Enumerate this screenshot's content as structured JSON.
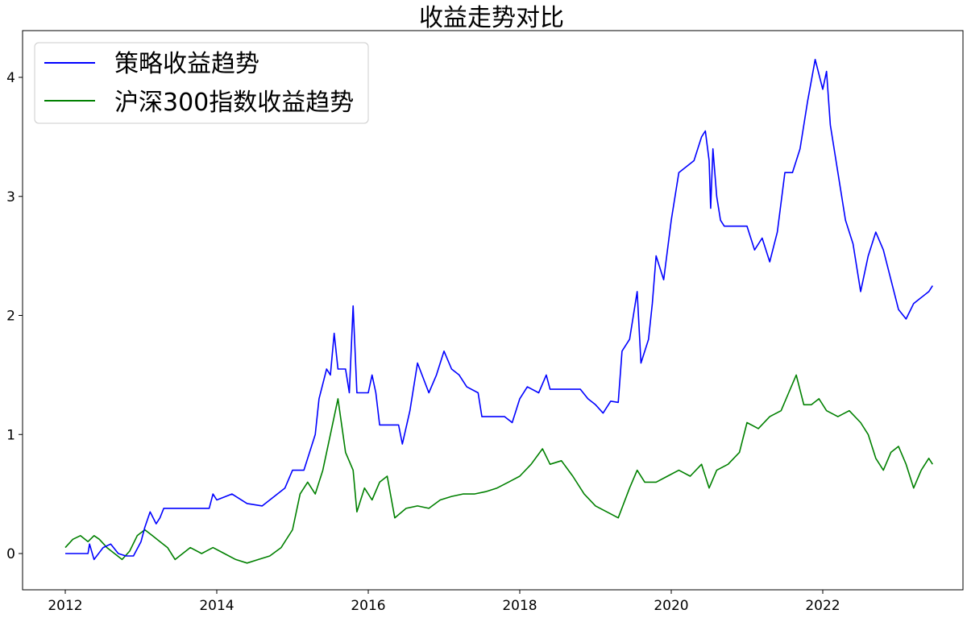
{
  "chart_data": {
    "type": "line",
    "title": "收益走势对比",
    "xlabel": "",
    "ylabel": "",
    "x_range": [
      2011.8,
      2023.5
    ],
    "ylim": [
      -0.3,
      4.3
    ],
    "x_ticks": [
      2012,
      2014,
      2016,
      2018,
      2020,
      2022
    ],
    "x_tick_labels": [
      "2012",
      "2014",
      "2016",
      "2018",
      "2020",
      "2022"
    ],
    "y_ticks": [
      0,
      1,
      2,
      3,
      4
    ],
    "y_tick_labels": [
      "0",
      "1",
      "2",
      "3",
      "4"
    ],
    "grid": false,
    "legend_position": "top-left",
    "series": [
      {
        "name": "策略收益趋势",
        "color": "#0000ff",
        "points": [
          [
            2012.0,
            0.0
          ],
          [
            2012.2,
            0.0
          ],
          [
            2012.3,
            0.0
          ],
          [
            2012.32,
            0.08
          ],
          [
            2012.38,
            -0.05
          ],
          [
            2012.5,
            0.05
          ],
          [
            2012.6,
            0.08
          ],
          [
            2012.7,
            0.0
          ],
          [
            2012.8,
            -0.02
          ],
          [
            2012.9,
            -0.02
          ],
          [
            2013.0,
            0.1
          ],
          [
            2013.05,
            0.22
          ],
          [
            2013.12,
            0.35
          ],
          [
            2013.2,
            0.25
          ],
          [
            2013.25,
            0.3
          ],
          [
            2013.3,
            0.38
          ],
          [
            2013.6,
            0.38
          ],
          [
            2013.9,
            0.38
          ],
          [
            2013.95,
            0.5
          ],
          [
            2014.0,
            0.45
          ],
          [
            2014.2,
            0.5
          ],
          [
            2014.4,
            0.42
          ],
          [
            2014.6,
            0.4
          ],
          [
            2014.8,
            0.5
          ],
          [
            2014.9,
            0.55
          ],
          [
            2015.0,
            0.7
          ],
          [
            2015.15,
            0.7
          ],
          [
            2015.3,
            1.0
          ],
          [
            2015.35,
            1.3
          ],
          [
            2015.45,
            1.55
          ],
          [
            2015.5,
            1.5
          ],
          [
            2015.55,
            1.85
          ],
          [
            2015.6,
            1.55
          ],
          [
            2015.7,
            1.55
          ],
          [
            2015.75,
            1.35
          ],
          [
            2015.8,
            2.08
          ],
          [
            2015.85,
            1.35
          ],
          [
            2016.0,
            1.35
          ],
          [
            2016.05,
            1.5
          ],
          [
            2016.1,
            1.35
          ],
          [
            2016.15,
            1.08
          ],
          [
            2016.4,
            1.08
          ],
          [
            2016.45,
            0.92
          ],
          [
            2016.55,
            1.2
          ],
          [
            2016.65,
            1.6
          ],
          [
            2016.8,
            1.35
          ],
          [
            2016.9,
            1.5
          ],
          [
            2017.0,
            1.7
          ],
          [
            2017.1,
            1.55
          ],
          [
            2017.2,
            1.5
          ],
          [
            2017.3,
            1.4
          ],
          [
            2017.45,
            1.35
          ],
          [
            2017.5,
            1.15
          ],
          [
            2017.8,
            1.15
          ],
          [
            2017.9,
            1.1
          ],
          [
            2018.0,
            1.3
          ],
          [
            2018.1,
            1.4
          ],
          [
            2018.25,
            1.35
          ],
          [
            2018.35,
            1.5
          ],
          [
            2018.4,
            1.38
          ],
          [
            2018.5,
            1.38
          ],
          [
            2018.8,
            1.38
          ],
          [
            2018.9,
            1.3
          ],
          [
            2019.0,
            1.25
          ],
          [
            2019.1,
            1.18
          ],
          [
            2019.2,
            1.28
          ],
          [
            2019.3,
            1.27
          ],
          [
            2019.35,
            1.7
          ],
          [
            2019.45,
            1.8
          ],
          [
            2019.55,
            2.2
          ],
          [
            2019.6,
            1.6
          ],
          [
            2019.7,
            1.8
          ],
          [
            2019.75,
            2.1
          ],
          [
            2019.8,
            2.5
          ],
          [
            2019.9,
            2.3
          ],
          [
            2020.0,
            2.8
          ],
          [
            2020.1,
            3.2
          ],
          [
            2020.3,
            3.3
          ],
          [
            2020.4,
            3.5
          ],
          [
            2020.45,
            3.55
          ],
          [
            2020.5,
            3.3
          ],
          [
            2020.52,
            2.9
          ],
          [
            2020.55,
            3.4
          ],
          [
            2020.6,
            3.0
          ],
          [
            2020.65,
            2.8
          ],
          [
            2020.7,
            2.75
          ],
          [
            2020.9,
            2.75
          ],
          [
            2021.0,
            2.75
          ],
          [
            2021.1,
            2.55
          ],
          [
            2021.2,
            2.65
          ],
          [
            2021.3,
            2.45
          ],
          [
            2021.4,
            2.7
          ],
          [
            2021.5,
            3.2
          ],
          [
            2021.6,
            3.2
          ],
          [
            2021.7,
            3.4
          ],
          [
            2021.8,
            3.8
          ],
          [
            2021.9,
            4.15
          ],
          [
            2022.0,
            3.9
          ],
          [
            2022.05,
            4.05
          ],
          [
            2022.1,
            3.6
          ],
          [
            2022.2,
            3.2
          ],
          [
            2022.3,
            2.8
          ],
          [
            2022.4,
            2.6
          ],
          [
            2022.5,
            2.2
          ],
          [
            2022.6,
            2.5
          ],
          [
            2022.7,
            2.7
          ],
          [
            2022.8,
            2.55
          ],
          [
            2022.9,
            2.3
          ],
          [
            2023.0,
            2.05
          ],
          [
            2023.1,
            1.97
          ],
          [
            2023.2,
            2.1
          ],
          [
            2023.3,
            2.15
          ],
          [
            2023.4,
            2.2
          ],
          [
            2023.45,
            2.25
          ]
        ]
      },
      {
        "name": "沪深300指数收益趋势",
        "color": "#008000",
        "points": [
          [
            2012.0,
            0.05
          ],
          [
            2012.1,
            0.12
          ],
          [
            2012.2,
            0.15
          ],
          [
            2012.3,
            0.1
          ],
          [
            2012.38,
            0.15
          ],
          [
            2012.45,
            0.12
          ],
          [
            2012.55,
            0.05
          ],
          [
            2012.65,
            0.0
          ],
          [
            2012.75,
            -0.05
          ],
          [
            2012.85,
            0.02
          ],
          [
            2012.95,
            0.15
          ],
          [
            2013.05,
            0.2
          ],
          [
            2013.15,
            0.15
          ],
          [
            2013.25,
            0.1
          ],
          [
            2013.35,
            0.05
          ],
          [
            2013.45,
            -0.05
          ],
          [
            2013.55,
            0.0
          ],
          [
            2013.65,
            0.05
          ],
          [
            2013.8,
            0.0
          ],
          [
            2013.95,
            0.05
          ],
          [
            2014.1,
            0.0
          ],
          [
            2014.25,
            -0.05
          ],
          [
            2014.4,
            -0.08
          ],
          [
            2014.55,
            -0.05
          ],
          [
            2014.7,
            -0.02
          ],
          [
            2014.85,
            0.05
          ],
          [
            2015.0,
            0.2
          ],
          [
            2015.1,
            0.5
          ],
          [
            2015.2,
            0.6
          ],
          [
            2015.3,
            0.5
          ],
          [
            2015.4,
            0.7
          ],
          [
            2015.5,
            1.0
          ],
          [
            2015.6,
            1.3
          ],
          [
            2015.7,
            0.85
          ],
          [
            2015.8,
            0.7
          ],
          [
            2015.85,
            0.35
          ],
          [
            2015.95,
            0.55
          ],
          [
            2016.05,
            0.45
          ],
          [
            2016.15,
            0.6
          ],
          [
            2016.25,
            0.65
          ],
          [
            2016.35,
            0.3
          ],
          [
            2016.5,
            0.38
          ],
          [
            2016.65,
            0.4
          ],
          [
            2016.8,
            0.38
          ],
          [
            2016.95,
            0.45
          ],
          [
            2017.1,
            0.48
          ],
          [
            2017.25,
            0.5
          ],
          [
            2017.4,
            0.5
          ],
          [
            2017.55,
            0.52
          ],
          [
            2017.7,
            0.55
          ],
          [
            2017.85,
            0.6
          ],
          [
            2018.0,
            0.65
          ],
          [
            2018.15,
            0.75
          ],
          [
            2018.3,
            0.88
          ],
          [
            2018.4,
            0.75
          ],
          [
            2018.55,
            0.78
          ],
          [
            2018.7,
            0.65
          ],
          [
            2018.85,
            0.5
          ],
          [
            2019.0,
            0.4
          ],
          [
            2019.15,
            0.35
          ],
          [
            2019.3,
            0.3
          ],
          [
            2019.45,
            0.55
          ],
          [
            2019.55,
            0.7
          ],
          [
            2019.65,
            0.6
          ],
          [
            2019.8,
            0.6
          ],
          [
            2019.95,
            0.65
          ],
          [
            2020.1,
            0.7
          ],
          [
            2020.25,
            0.65
          ],
          [
            2020.4,
            0.75
          ],
          [
            2020.5,
            0.55
          ],
          [
            2020.6,
            0.7
          ],
          [
            2020.75,
            0.75
          ],
          [
            2020.9,
            0.85
          ],
          [
            2021.0,
            1.1
          ],
          [
            2021.15,
            1.05
          ],
          [
            2021.3,
            1.15
          ],
          [
            2021.45,
            1.2
          ],
          [
            2021.55,
            1.35
          ],
          [
            2021.65,
            1.5
          ],
          [
            2021.75,
            1.25
          ],
          [
            2021.85,
            1.25
          ],
          [
            2021.95,
            1.3
          ],
          [
            2022.05,
            1.2
          ],
          [
            2022.2,
            1.15
          ],
          [
            2022.35,
            1.2
          ],
          [
            2022.5,
            1.1
          ],
          [
            2022.6,
            1.0
          ],
          [
            2022.7,
            0.8
          ],
          [
            2022.8,
            0.7
          ],
          [
            2022.9,
            0.85
          ],
          [
            2023.0,
            0.9
          ],
          [
            2023.1,
            0.75
          ],
          [
            2023.2,
            0.55
          ],
          [
            2023.3,
            0.7
          ],
          [
            2023.4,
            0.8
          ],
          [
            2023.45,
            0.75
          ]
        ]
      }
    ]
  }
}
